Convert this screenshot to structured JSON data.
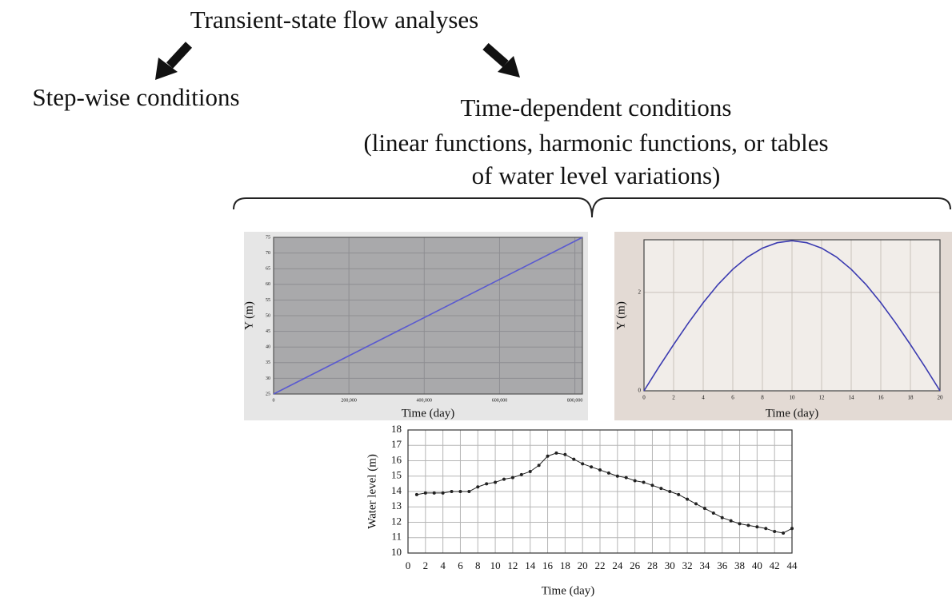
{
  "title": "Transient-state flow analyses",
  "left_label": "Step-wise conditions",
  "right_label": [
    "Time-dependent conditions",
    "(linear functions, harmonic functions, or tables",
    "of water level variations)"
  ],
  "chart_data": [
    {
      "type": "line",
      "xlabel": "Time (day)",
      "ylabel": "Y (m)",
      "x": [
        0,
        820000
      ],
      "values": [
        25,
        75
      ],
      "color": "#5a5ad0",
      "background": "#a9a9ab",
      "frame": "#e6e6e6",
      "xlim": [
        0,
        820000
      ],
      "xticks": [
        0,
        {
          "value": 200000,
          "label": "200,000"
        },
        {
          "value": 400000,
          "label": "400,000"
        },
        {
          "value": 600000,
          "label": "600,000"
        },
        {
          "value": 800000,
          "label": "800,000"
        }
      ],
      "ylim": [
        25,
        75
      ],
      "yticks": [
        25,
        30,
        35,
        40,
        45,
        50,
        55,
        60,
        65,
        70,
        75
      ],
      "grid": true,
      "markers": false
    },
    {
      "type": "line",
      "xlabel": "Time (day)",
      "ylabel": "Y (m)",
      "x": [
        0,
        1,
        2,
        3,
        4,
        5,
        6,
        7,
        8,
        9,
        10,
        11,
        12,
        13,
        14,
        15,
        16,
        17,
        18,
        19,
        20
      ],
      "values": [
        0,
        0.48,
        0.94,
        1.38,
        1.79,
        2.16,
        2.47,
        2.72,
        2.9,
        3.01,
        3.05,
        3.01,
        2.9,
        2.72,
        2.47,
        2.16,
        1.79,
        1.38,
        0.94,
        0.48,
        0
      ],
      "color": "#3a3ab0",
      "background": "#f1ede9",
      "frame": "#e3dad4",
      "xlim": [
        0,
        20
      ],
      "xticks": [
        0,
        2,
        4,
        6,
        8,
        10,
        12,
        14,
        16,
        18,
        20
      ],
      "ylim": [
        0,
        3.07
      ],
      "yticks": [
        0,
        2
      ],
      "grid": true,
      "markers": false
    },
    {
      "type": "line",
      "xlabel": "Time (day)",
      "ylabel": "Water level (m)",
      "x": [
        1,
        2,
        3,
        4,
        5,
        6,
        7,
        8,
        9,
        10,
        11,
        12,
        13,
        14,
        15,
        16,
        17,
        18,
        19,
        20,
        21,
        22,
        23,
        24,
        25,
        26,
        27,
        28,
        29,
        30,
        31,
        32,
        33,
        34,
        35,
        36,
        37,
        38,
        39,
        40,
        41,
        42,
        43,
        44
      ],
      "values": [
        13.8,
        13.9,
        13.9,
        13.9,
        14.0,
        14.0,
        14.0,
        14.3,
        14.5,
        14.6,
        14.8,
        14.9,
        15.1,
        15.3,
        15.7,
        16.3,
        16.5,
        16.4,
        16.1,
        15.8,
        15.6,
        15.4,
        15.2,
        15.0,
        14.9,
        14.7,
        14.6,
        14.4,
        14.2,
        14.0,
        13.8,
        13.5,
        13.2,
        12.9,
        12.6,
        12.3,
        12.1,
        11.9,
        11.8,
        11.7,
        11.6,
        11.4,
        11.3,
        11.6
      ],
      "color": "#222222",
      "background": "#ffffff",
      "frame": "#ffffff",
      "xlim": [
        0,
        44
      ],
      "xticks": [
        0,
        2,
        4,
        6,
        8,
        10,
        12,
        14,
        16,
        18,
        20,
        22,
        24,
        26,
        28,
        30,
        32,
        34,
        36,
        38,
        40,
        42,
        44
      ],
      "ylim": [
        10,
        18
      ],
      "yticks": [
        10,
        11,
        12,
        13,
        14,
        15,
        16,
        17,
        18
      ],
      "grid": true,
      "markers": true
    }
  ]
}
